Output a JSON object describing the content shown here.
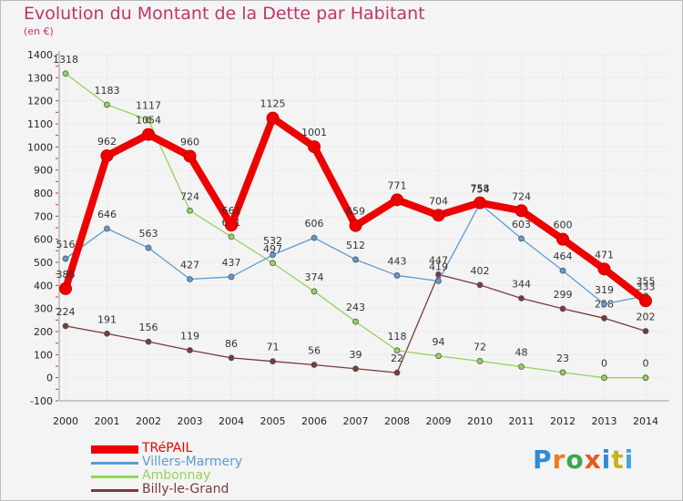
{
  "header": {
    "title": "Evolution du Montant de la Dette par Habitant",
    "subtitle": "(en €)"
  },
  "brand": {
    "letters": [
      "P",
      "r",
      "o",
      "x",
      "i",
      "t",
      "i"
    ],
    "colors": [
      "#2e8bd6",
      "#f07a1a",
      "#3aa84a",
      "#e85a1f",
      "#2e8bd6",
      "#c9b21a",
      "#4aa0d8"
    ]
  },
  "chart_data": {
    "type": "line",
    "title": "Evolution du Montant de la Dette par Habitant",
    "subtitle": "(en €)",
    "xlabel": "",
    "ylabel": "",
    "x": [
      2000,
      2001,
      2002,
      2003,
      2004,
      2005,
      2006,
      2007,
      2008,
      2009,
      2010,
      2011,
      2012,
      2013,
      2014
    ],
    "x_tick_labels": [
      "2000",
      "2001",
      "2002",
      "2003",
      "2004",
      "2005",
      "2006",
      "2007",
      "2008",
      "2009",
      "2010",
      "2011",
      "2012",
      "2013",
      "2014"
    ],
    "ylim": [
      -100,
      1400
    ],
    "y_ticks": [
      -100,
      0,
      100,
      200,
      300,
      400,
      500,
      600,
      700,
      800,
      900,
      1000,
      1100,
      1200,
      1300,
      1400
    ],
    "y_tick_labels": [
      "-100",
      "0",
      "100",
      "200",
      "300",
      "400",
      "500",
      "600",
      "700",
      "800",
      "900",
      "1000",
      "1100",
      "1200",
      "1300",
      "1400"
    ],
    "grid": true,
    "legend_position": "bottom-left",
    "series": [
      {
        "name": "TRéPAIL",
        "color": "#ee0000",
        "values": [
          386,
          962,
          1054,
          960,
          661,
          1125,
          1001,
          659,
          771,
          704,
          758,
          724,
          600,
          471,
          333
        ],
        "labels": [
          "386",
          "962",
          "1054",
          "960",
          "661",
          "1125",
          "1001",
          "659",
          "771",
          "704",
          "758",
          "724",
          "600",
          "471",
          "333"
        ]
      },
      {
        "name": "Villers-Marmery",
        "color": "#5b9bd5",
        "values": [
          516,
          646,
          563,
          427,
          437,
          532,
          606,
          512,
          443,
          419,
          754,
          603,
          464,
          319,
          355
        ],
        "labels": [
          "516",
          "646",
          "563",
          "427",
          "437",
          "532",
          "606",
          "512",
          "443",
          "419",
          "754",
          "603",
          "464",
          "319",
          "355"
        ]
      },
      {
        "name": "Ambonnay",
        "color": "#96d25a",
        "values": [
          1318,
          1183,
          1117,
          724,
          611,
          497,
          374,
          243,
          118,
          94,
          72,
          48,
          23,
          0,
          0
        ],
        "labels": [
          "1318",
          "1183",
          "1117",
          "724",
          "611",
          "497",
          "374",
          "243",
          "118",
          "94",
          "72",
          "48",
          "23",
          "0",
          "0"
        ]
      },
      {
        "name": "Billy-le-Grand",
        "color": "#7b3a3a",
        "values": [
          224,
          191,
          156,
          119,
          86,
          71,
          56,
          39,
          22,
          447,
          402,
          344,
          299,
          258,
          202
        ],
        "labels": [
          "224",
          "191",
          "156",
          "119",
          "86",
          "71",
          "56",
          "39",
          "22",
          "447",
          "402",
          "344",
          "299",
          "258",
          "202"
        ]
      }
    ]
  }
}
